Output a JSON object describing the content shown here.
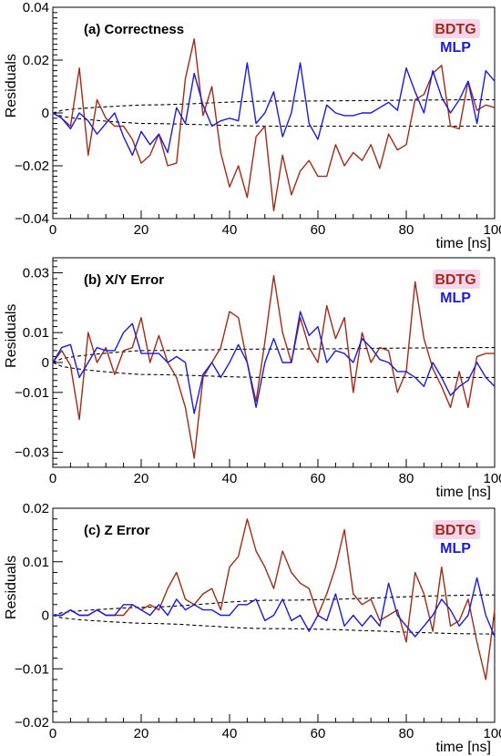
{
  "colors": {
    "bdtg": "#a52a13",
    "mlp": "#1a1ae6",
    "envelope": "#000000",
    "legend_halo": "#f5d6ee"
  },
  "chart_data": [
    {
      "type": "line",
      "title": "(a) Correctness",
      "xlabel": "time [ns]",
      "ylabel": "Residuals",
      "xlim": [
        0,
        100
      ],
      "ylim": [
        -0.04,
        0.04
      ],
      "xticks": [
        0,
        20,
        40,
        60,
        80,
        100
      ],
      "xtick_labels": [
        "0",
        "20",
        "40",
        "60",
        "80",
        "100"
      ],
      "yticks": [
        -0.04,
        -0.02,
        0,
        0.02,
        0.04
      ],
      "ytick_labels": [
        "−0.04",
        "−0.02",
        "0",
        "0.02",
        "0.04"
      ],
      "legend": {
        "position": "top-right",
        "entries": [
          "BDTG",
          "MLP"
        ]
      },
      "envelope": {
        "upper": [
          [
            0,
            0
          ],
          [
            20,
            0.003
          ],
          [
            50,
            0.0045
          ],
          [
            100,
            0.005
          ]
        ],
        "lower": [
          [
            0,
            0
          ],
          [
            20,
            -0.004
          ],
          [
            50,
            -0.005
          ],
          [
            100,
            -0.005
          ]
        ]
      },
      "x": [
        0,
        2,
        4,
        6,
        8,
        10,
        12,
        14,
        16,
        18,
        20,
        22,
        24,
        26,
        28,
        30,
        32,
        34,
        36,
        38,
        40,
        42,
        44,
        46,
        48,
        50,
        52,
        54,
        56,
        58,
        60,
        62,
        64,
        66,
        68,
        70,
        72,
        74,
        76,
        78,
        80,
        82,
        84,
        86,
        88,
        90,
        92,
        94,
        96,
        98,
        100
      ],
      "series": [
        {
          "name": "BDTG",
          "values": [
            0.0,
            -0.002,
            -0.005,
            0.017,
            -0.016,
            0.005,
            -0.002,
            -0.005,
            -0.005,
            -0.01,
            -0.019,
            -0.016,
            -0.008,
            -0.02,
            -0.019,
            0.013,
            0.028,
            -0.001,
            0.01,
            -0.015,
            -0.028,
            -0.02,
            -0.032,
            -0.009,
            -0.005,
            -0.037,
            -0.016,
            -0.031,
            -0.022,
            -0.018,
            -0.024,
            -0.024,
            -0.012,
            -0.02,
            -0.015,
            -0.018,
            -0.012,
            -0.021,
            -0.008,
            -0.014,
            -0.012,
            0.005,
            0.007,
            0.015,
            0.018,
            -0.005,
            -0.006,
            0.012,
            0.001,
            0.003,
            0.002
          ]
        },
        {
          "name": "MLP",
          "values": [
            0.0,
            -0.002,
            -0.006,
            0.0,
            -0.003,
            -0.008,
            -0.004,
            0.0,
            -0.009,
            -0.016,
            -0.007,
            -0.012,
            -0.008,
            -0.015,
            0.002,
            -0.004,
            0.015,
            0.003,
            -0.005,
            -0.003,
            -0.002,
            -0.003,
            0.019,
            -0.004,
            0.0,
            0.008,
            -0.009,
            0.0,
            0.019,
            -0.004,
            -0.01,
            0.003,
            0.0,
            -0.001,
            -0.001,
            0.0,
            0.0,
            0.002,
            0.004,
            0.001,
            0.017,
            0.008,
            0.0,
            0.016,
            0.006,
            0.0,
            0.005,
            0.012,
            -0.004,
            0.016,
            0.012
          ]
        }
      ]
    },
    {
      "type": "line",
      "title": "(b) X/Y Error",
      "xlabel": "time [ns]",
      "ylabel": "Residuals",
      "xlim": [
        0,
        100
      ],
      "ylim": [
        -0.035,
        0.035
      ],
      "xticks": [
        0,
        20,
        40,
        60,
        80,
        100
      ],
      "xtick_labels": [
        "0",
        "20",
        "40",
        "60",
        "80",
        "100"
      ],
      "yticks": [
        -0.03,
        -0.01,
        0,
        0.01,
        0.03
      ],
      "ytick_labels": [
        "−0.03",
        "−0.01",
        "0",
        "0.01",
        "0.03"
      ],
      "legend": {
        "position": "top-right",
        "entries": [
          "BDTG",
          "MLP"
        ]
      },
      "envelope": {
        "upper": [
          [
            0,
            0
          ],
          [
            20,
            0.004
          ],
          [
            50,
            0.0045
          ],
          [
            100,
            0.005
          ]
        ],
        "lower": [
          [
            0,
            0
          ],
          [
            20,
            -0.004
          ],
          [
            50,
            -0.005
          ],
          [
            100,
            -0.005
          ]
        ]
      },
      "x": [
        0,
        2,
        4,
        6,
        8,
        10,
        12,
        14,
        16,
        18,
        20,
        22,
        24,
        26,
        28,
        30,
        32,
        34,
        36,
        38,
        40,
        42,
        44,
        46,
        48,
        50,
        52,
        54,
        56,
        58,
        60,
        62,
        64,
        66,
        68,
        70,
        72,
        74,
        76,
        78,
        80,
        82,
        84,
        86,
        88,
        90,
        92,
        94,
        96,
        98,
        100
      ],
      "series": [
        {
          "name": "BDTG",
          "values": [
            0.0,
            0.004,
            -0.001,
            -0.019,
            0.01,
            0.0,
            0.005,
            -0.004,
            0.004,
            0.005,
            0.015,
            0.0,
            0.009,
            0.0,
            -0.005,
            -0.015,
            -0.032,
            -0.005,
            0.0,
            0.005,
            0.017,
            0.015,
            0.0,
            -0.013,
            0.007,
            0.029,
            0.01,
            0.0,
            0.015,
            0.005,
            0.0,
            0.019,
            0.008,
            0.015,
            -0.01,
            0.01,
            0.0,
            0.005,
            0.004,
            -0.01,
            -0.003,
            0.027,
            0.008,
            -0.002,
            -0.008,
            -0.015,
            -0.003,
            -0.015,
            0.002,
            0.003,
            0.003
          ]
        },
        {
          "name": "MLP",
          "values": [
            0.0,
            0.005,
            0.006,
            -0.005,
            0.0,
            0.005,
            0.004,
            0.004,
            0.01,
            0.013,
            0.003,
            0.003,
            0.003,
            0.0,
            0.002,
            0.0,
            -0.017,
            -0.004,
            0.0,
            -0.005,
            0.0,
            0.006,
            0.0,
            -0.015,
            0.0,
            0.008,
            0.0,
            0.0,
            0.017,
            0.009,
            0.012,
            0.0,
            0.004,
            0.003,
            0.0,
            0.008,
            0.005,
            0.001,
            0.0,
            -0.003,
            -0.003,
            -0.005,
            -0.008,
            0.0,
            -0.005,
            -0.011,
            -0.008,
            -0.006,
            0.0,
            -0.005,
            -0.008
          ]
        }
      ]
    },
    {
      "type": "line",
      "title": "(c) Z Error",
      "xlabel": "time [ns]",
      "ylabel": "Residuals",
      "xlim": [
        0,
        100
      ],
      "ylim": [
        -0.02,
        0.02
      ],
      "xticks": [
        0,
        20,
        40,
        60,
        80,
        100
      ],
      "xtick_labels": [
        "0",
        "20",
        "40",
        "60",
        "80",
        "100"
      ],
      "yticks": [
        -0.02,
        -0.01,
        0,
        0.01,
        0.02
      ],
      "ytick_labels": [
        "−0.02",
        "−0.01",
        "0",
        "0.01",
        "0.02"
      ],
      "legend": {
        "position": "top-right",
        "entries": [
          "BDTG",
          "MLP"
        ]
      },
      "envelope": {
        "upper": [
          [
            0,
            0
          ],
          [
            20,
            0.0015
          ],
          [
            50,
            0.0028
          ],
          [
            100,
            0.0038
          ]
        ],
        "lower": [
          [
            0,
            0
          ],
          [
            20,
            -0.0015
          ],
          [
            50,
            -0.0025
          ],
          [
            100,
            -0.0035
          ]
        ]
      },
      "x": [
        0,
        2,
        4,
        6,
        8,
        10,
        12,
        14,
        16,
        18,
        20,
        22,
        24,
        26,
        28,
        30,
        32,
        34,
        36,
        38,
        40,
        42,
        44,
        46,
        48,
        50,
        52,
        54,
        56,
        58,
        60,
        62,
        64,
        66,
        68,
        70,
        72,
        74,
        76,
        78,
        80,
        82,
        84,
        86,
        88,
        90,
        92,
        94,
        96,
        98,
        100
      ],
      "series": [
        {
          "name": "BDTG",
          "values": [
            0.0,
            0.0,
            0.001,
            0.0,
            0.0,
            0.001,
            0.0,
            0.0,
            0.0,
            0.002,
            0.001,
            0.002,
            0.001,
            0.005,
            0.008,
            0.003,
            0.002,
            0.004,
            0.005,
            0.001,
            0.009,
            0.011,
            0.018,
            0.012,
            0.009,
            0.005,
            0.012,
            0.008,
            0.006,
            0.005,
            0.0,
            0.004,
            0.009,
            0.016,
            0.004,
            0.002,
            0.003,
            -0.001,
            0.0,
            0.001,
            -0.005,
            0.008,
            0.004,
            -0.003,
            0.009,
            -0.002,
            -0.001,
            0.003,
            -0.005,
            -0.012,
            0.001
          ]
        },
        {
          "name": "MLP",
          "values": [
            0.0,
            0.0,
            0.001,
            0.0,
            0.0,
            0.001,
            0.0,
            0.0,
            0.002,
            0.002,
            0.001,
            0.0,
            0.002,
            0.0,
            0.003,
            0.001,
            0.002,
            0.001,
            0.001,
            0.0,
            0.0,
            0.002,
            0.002,
            0.003,
            -0.001,
            0.0,
            0.003,
            -0.001,
            0.0,
            -0.003,
            0.0,
            -0.001,
            0.004,
            -0.002,
            0.0,
            -0.002,
            0.0,
            -0.002,
            0.006,
            0.0,
            -0.002,
            -0.004,
            -0.002,
            0.0,
            0.003,
            0.001,
            -0.002,
            0.0,
            0.007,
            0.0,
            -0.004
          ]
        }
      ]
    }
  ]
}
